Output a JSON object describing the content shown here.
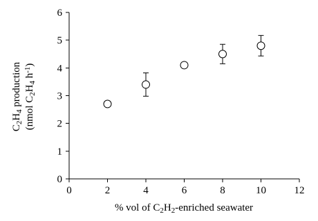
{
  "chart_data": {
    "type": "scatter",
    "title": "",
    "xlabel": {
      "pre": "% vol of C",
      "sub1": "2",
      "mid": "H",
      "sub2": "2",
      "post": "-enriched seawater"
    },
    "ylabel": {
      "line1": {
        "pre": "C",
        "sub1": "2",
        "mid": "H",
        "sub2": "4",
        "post": " production"
      },
      "line2": {
        "pre": "(nmol C",
        "sub1": "2",
        "mid": "H",
        "sub2": "4",
        "mid2": " h",
        "sup": "-1",
        "post": ")"
      }
    },
    "xlim": [
      0,
      12
    ],
    "ylim": [
      0,
      6
    ],
    "x_ticks": [
      "0",
      "2",
      "4",
      "6",
      "8",
      "10",
      "12"
    ],
    "y_ticks": [
      "0",
      "1",
      "2",
      "3",
      "4",
      "5",
      "6"
    ],
    "grid": false,
    "legend": "none",
    "marker": "open-circle",
    "series": [
      {
        "x": [
          2,
          4,
          6,
          8,
          10
        ],
        "y": [
          2.7,
          3.4,
          4.1,
          4.5,
          4.8
        ],
        "error": [
          0.0,
          0.42,
          0.1,
          0.35,
          0.37
        ]
      }
    ]
  }
}
